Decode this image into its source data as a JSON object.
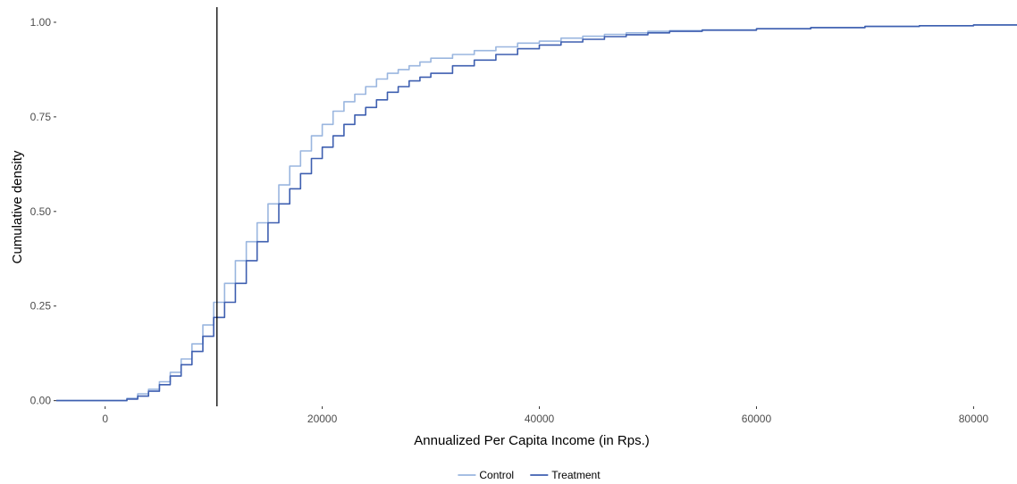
{
  "chart_data": {
    "type": "line",
    "subtype": "ecdf",
    "title": "",
    "xlabel": "Annualized Per Capita Income (in Rps.)",
    "ylabel": "Cumulative density",
    "xlim": [
      -4500,
      84000
    ],
    "ylim": [
      -0.015,
      1.04
    ],
    "x_ticks": [
      0,
      20000,
      40000,
      60000,
      80000
    ],
    "x_tick_labels": [
      "0",
      "20000",
      "40000",
      "60000",
      "80000"
    ],
    "y_ticks": [
      0,
      0.25,
      0.5,
      0.75,
      1
    ],
    "y_tick_labels": [
      "0.00",
      "0.25",
      "0.50",
      "0.75",
      "1.00"
    ],
    "grid": false,
    "legend": {
      "position": "bottom",
      "entries": [
        "Control",
        "Treatment"
      ]
    },
    "reference_line": {
      "orientation": "vertical",
      "x": 10300,
      "color": "#000000"
    },
    "series": [
      {
        "name": "Control",
        "color": "#9ab6df",
        "points": [
          [
            -4500,
            0
          ],
          [
            1000,
            0
          ],
          [
            2000,
            0.006
          ],
          [
            3000,
            0.018
          ],
          [
            4000,
            0.03
          ],
          [
            5000,
            0.05
          ],
          [
            6000,
            0.075
          ],
          [
            7000,
            0.11
          ],
          [
            8000,
            0.15
          ],
          [
            9000,
            0.2
          ],
          [
            10000,
            0.26
          ],
          [
            11000,
            0.31
          ],
          [
            12000,
            0.37
          ],
          [
            13000,
            0.42
          ],
          [
            14000,
            0.47
          ],
          [
            15000,
            0.52
          ],
          [
            16000,
            0.57
          ],
          [
            17000,
            0.62
          ],
          [
            18000,
            0.66
          ],
          [
            19000,
            0.7
          ],
          [
            20000,
            0.73
          ],
          [
            21000,
            0.765
          ],
          [
            22000,
            0.79
          ],
          [
            23000,
            0.81
          ],
          [
            24000,
            0.83
          ],
          [
            25000,
            0.85
          ],
          [
            26000,
            0.865
          ],
          [
            27000,
            0.875
          ],
          [
            28000,
            0.885
          ],
          [
            29000,
            0.895
          ],
          [
            30000,
            0.905
          ],
          [
            32000,
            0.915
          ],
          [
            34000,
            0.925
          ],
          [
            36000,
            0.935
          ],
          [
            38000,
            0.945
          ],
          [
            40000,
            0.95
          ],
          [
            42000,
            0.958
          ],
          [
            44000,
            0.963
          ],
          [
            46000,
            0.968
          ],
          [
            48000,
            0.972
          ],
          [
            50000,
            0.976
          ],
          [
            52000,
            0.978
          ],
          [
            55000,
            0.98
          ],
          [
            60000,
            0.983
          ],
          [
            65000,
            0.986
          ],
          [
            70000,
            0.989
          ],
          [
            75000,
            0.991
          ],
          [
            80000,
            0.993
          ],
          [
            84000,
            0.995
          ]
        ]
      },
      {
        "name": "Treatment",
        "color": "#3e5fb0",
        "points": [
          [
            -4500,
            0
          ],
          [
            1000,
            0
          ],
          [
            2000,
            0.004
          ],
          [
            3000,
            0.012
          ],
          [
            4000,
            0.025
          ],
          [
            5000,
            0.042
          ],
          [
            6000,
            0.065
          ],
          [
            7000,
            0.095
          ],
          [
            8000,
            0.13
          ],
          [
            9000,
            0.17
          ],
          [
            10000,
            0.22
          ],
          [
            11000,
            0.26
          ],
          [
            12000,
            0.31
          ],
          [
            13000,
            0.37
          ],
          [
            14000,
            0.42
          ],
          [
            15000,
            0.47
          ],
          [
            16000,
            0.52
          ],
          [
            17000,
            0.56
          ],
          [
            18000,
            0.6
          ],
          [
            19000,
            0.64
          ],
          [
            20000,
            0.67
          ],
          [
            21000,
            0.7
          ],
          [
            22000,
            0.73
          ],
          [
            23000,
            0.755
          ],
          [
            24000,
            0.775
          ],
          [
            25000,
            0.795
          ],
          [
            26000,
            0.815
          ],
          [
            27000,
            0.83
          ],
          [
            28000,
            0.845
          ],
          [
            29000,
            0.855
          ],
          [
            30000,
            0.865
          ],
          [
            32000,
            0.885
          ],
          [
            34000,
            0.9
          ],
          [
            36000,
            0.915
          ],
          [
            38000,
            0.93
          ],
          [
            40000,
            0.94
          ],
          [
            42000,
            0.948
          ],
          [
            44000,
            0.955
          ],
          [
            46000,
            0.962
          ],
          [
            48000,
            0.967
          ],
          [
            50000,
            0.972
          ],
          [
            52000,
            0.976
          ],
          [
            55000,
            0.979
          ],
          [
            60000,
            0.983
          ],
          [
            65000,
            0.986
          ],
          [
            70000,
            0.989
          ],
          [
            75000,
            0.991
          ],
          [
            80000,
            0.993
          ],
          [
            84000,
            0.995
          ]
        ]
      }
    ]
  }
}
